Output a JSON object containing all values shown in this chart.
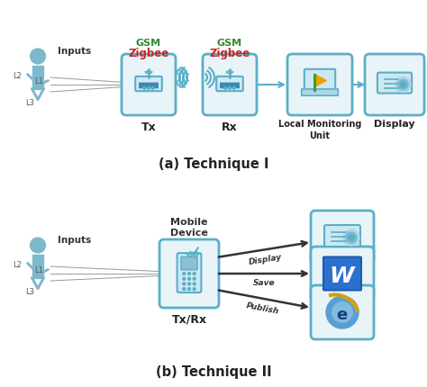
{
  "bg_color": "#ffffff",
  "figure_size": [
    4.74,
    4.31
  ],
  "dpi": 100,
  "human_color": "#7db8cc",
  "box_color": "#5aafc7",
  "box_face": "#e8f4f8",
  "gsm_color": "#2e8b2e",
  "zigbee_color": "#cc2222",
  "title_a": "(a) Technique I",
  "title_b": "(b) Technique II",
  "gsm_text": "GSM",
  "zigbee_text": "Zigbee",
  "wave_color": "#5aafc7",
  "router_face": "#d0e8f4",
  "icon_border": "#5aafc7"
}
